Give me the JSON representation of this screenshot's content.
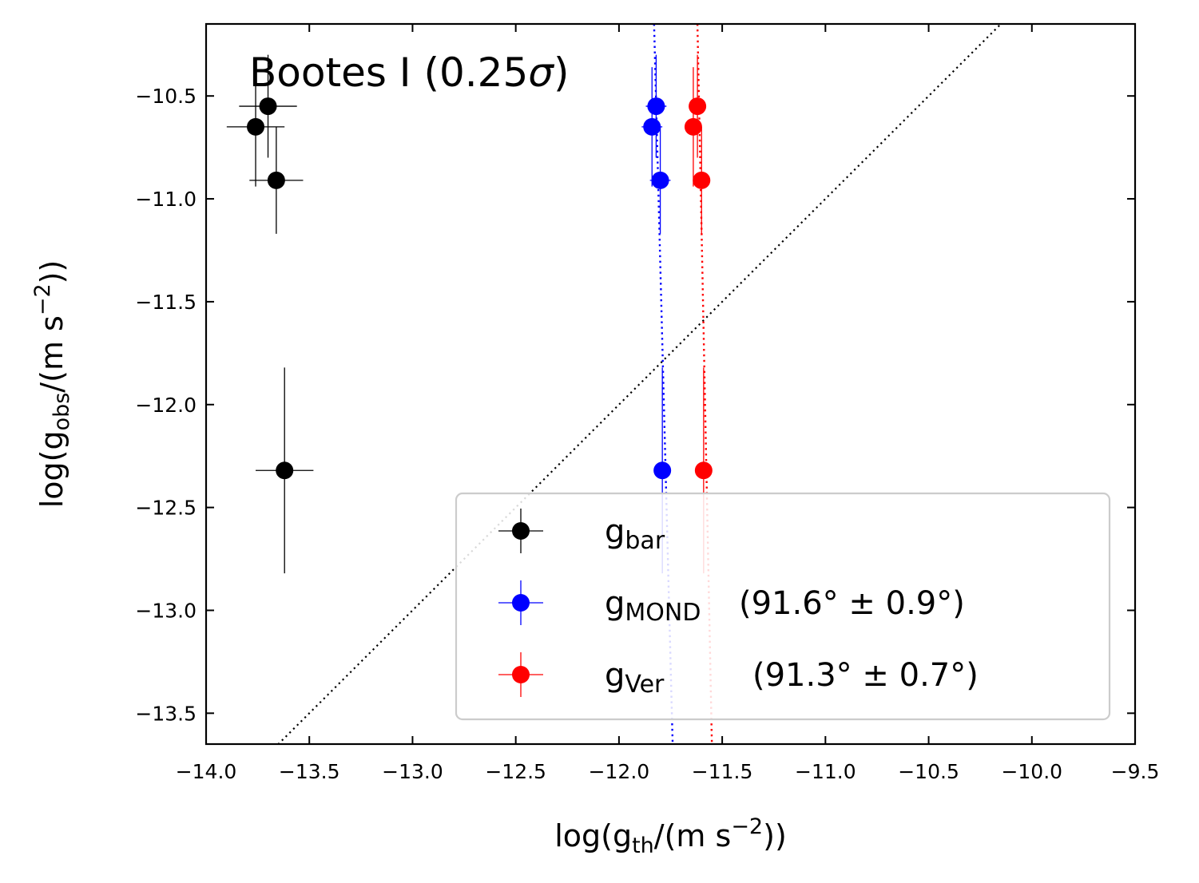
{
  "chart_data": {
    "type": "scatter",
    "annotation": {
      "name": "Bootes I",
      "open": " (0.25",
      "sigma": "σ",
      "close": ")"
    },
    "xlabel": {
      "pre": "log(g",
      "sub": "th",
      "mid": "/(m s",
      "sup": "−2",
      "post": "))"
    },
    "ylabel": {
      "pre": "log(g",
      "sub": "obs",
      "mid": "/(m s",
      "sup": "−2",
      "post": "))"
    },
    "xlim": [
      -14.0,
      -9.5
    ],
    "ylim": [
      -13.65,
      -10.15
    ],
    "xticks": [
      -14.0,
      -13.5,
      -13.0,
      -12.5,
      -12.0,
      -11.5,
      -11.0,
      -10.5,
      -10.0,
      -9.5
    ],
    "xtick_labels": [
      "−14.0",
      "−13.5",
      "−13.0",
      "−12.5",
      "−12.0",
      "−11.5",
      "−11.0",
      "−10.5",
      "−10.0",
      "−9.5"
    ],
    "yticks": [
      -13.5,
      -13.0,
      -12.5,
      -12.0,
      -11.5,
      -11.0,
      -10.5
    ],
    "ytick_labels": [
      "−13.5",
      "−13.0",
      "−12.5",
      "−12.0",
      "−11.5",
      "−11.0",
      "−10.5"
    ],
    "one_to_one_line": {
      "style": "dotted",
      "color": "#000000"
    },
    "series": [
      {
        "name": "g_bar",
        "label_main": "g",
        "label_sub": "bar",
        "label_extra": "",
        "color": "#000000",
        "points": [
          {
            "x": -13.76,
            "y": -10.65,
            "xerr": 0.14,
            "yerr": 0.29
          },
          {
            "x": -13.7,
            "y": -10.55,
            "xerr": 0.14,
            "yerr": 0.25
          },
          {
            "x": -13.66,
            "y": -10.91,
            "xerr": 0.13,
            "yerr": 0.26
          },
          {
            "x": -13.62,
            "y": -12.32,
            "xerr": 0.14,
            "yerr": 0.5
          }
        ]
      },
      {
        "name": "g_MOND",
        "label_main": "g",
        "label_sub": "MOND",
        "label_extra": " (91.6° ± 0.9°)",
        "color": "#0000ff",
        "points": [
          {
            "x": -11.84,
            "y": -10.65,
            "xerr": 0.05,
            "yerr": 0.29
          },
          {
            "x": -11.82,
            "y": -10.55,
            "xerr": 0.05,
            "yerr": 0.25
          },
          {
            "x": -11.8,
            "y": -10.91,
            "xerr": 0.05,
            "yerr": 0.26
          },
          {
            "x": -11.79,
            "y": -12.32,
            "xerr": 0.04,
            "yerr": 0.5
          }
        ],
        "vline": {
          "x0": -11.83,
          "y0": -10.15,
          "x1": -11.74,
          "y1": -13.65
        }
      },
      {
        "name": "g_Ver",
        "label_main": "g",
        "label_sub": "Ver",
        "label_extra": "(91.3° ± 0.7°)",
        "color": "#ff0000",
        "points": [
          {
            "x": -11.64,
            "y": -10.65,
            "xerr": 0.03,
            "yerr": 0.29
          },
          {
            "x": -11.62,
            "y": -10.55,
            "xerr": 0.03,
            "yerr": 0.25
          },
          {
            "x": -11.6,
            "y": -10.91,
            "xerr": 0.03,
            "yerr": 0.26
          },
          {
            "x": -11.59,
            "y": -12.32,
            "xerr": 0.02,
            "yerr": 0.5
          }
        ],
        "vline": {
          "x0": -11.62,
          "y0": -10.15,
          "x1": -11.55,
          "y1": -13.65
        }
      }
    ],
    "legend": {
      "position": "lower-right"
    }
  }
}
